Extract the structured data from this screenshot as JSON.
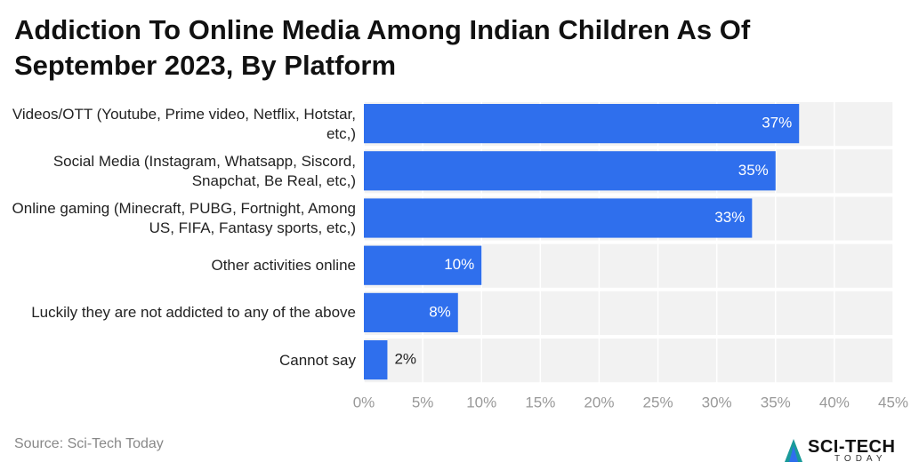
{
  "chart_data": {
    "type": "bar",
    "orientation": "horizontal",
    "title": "Addiction To Online Media Among Indian Children As Of September 2023, By Platform",
    "categories": [
      "Videos/OTT (Youtube, Prime video, Netflix, Hotstar, etc,)",
      "Social Media (Instagram, Whatsapp, Siscord, Snapchat, Be Real, etc,)",
      "Online gaming (Minecraft, PUBG, Fortnight, Among US, FIFA, Fantasy sports, etc,)",
      "Other activities online",
      "Luckily they are not addicted to any of the above",
      "Cannot say"
    ],
    "values": [
      37,
      35,
      33,
      10,
      8,
      2
    ],
    "value_labels": [
      "37%",
      "35%",
      "33%",
      "10%",
      "8%",
      "2%"
    ],
    "color": "#2f6fed",
    "xlim": [
      0,
      45
    ],
    "xticks": [
      {
        "value": 0,
        "label": "0%"
      },
      {
        "value": 5,
        "label": "5%"
      },
      {
        "value": 10,
        "label": "10%"
      },
      {
        "value": 15,
        "label": "15%"
      },
      {
        "value": 20,
        "label": "20%"
      },
      {
        "value": 25,
        "label": "25%"
      },
      {
        "value": 30,
        "label": "30%"
      },
      {
        "value": 35,
        "label": "35%"
      },
      {
        "value": 40,
        "label": "40%"
      },
      {
        "value": 45,
        "label": "45%"
      }
    ],
    "grid": true,
    "source": "Source: Sci-Tech Today",
    "logo": [
      "SCI-TECH",
      "TODAY"
    ]
  }
}
